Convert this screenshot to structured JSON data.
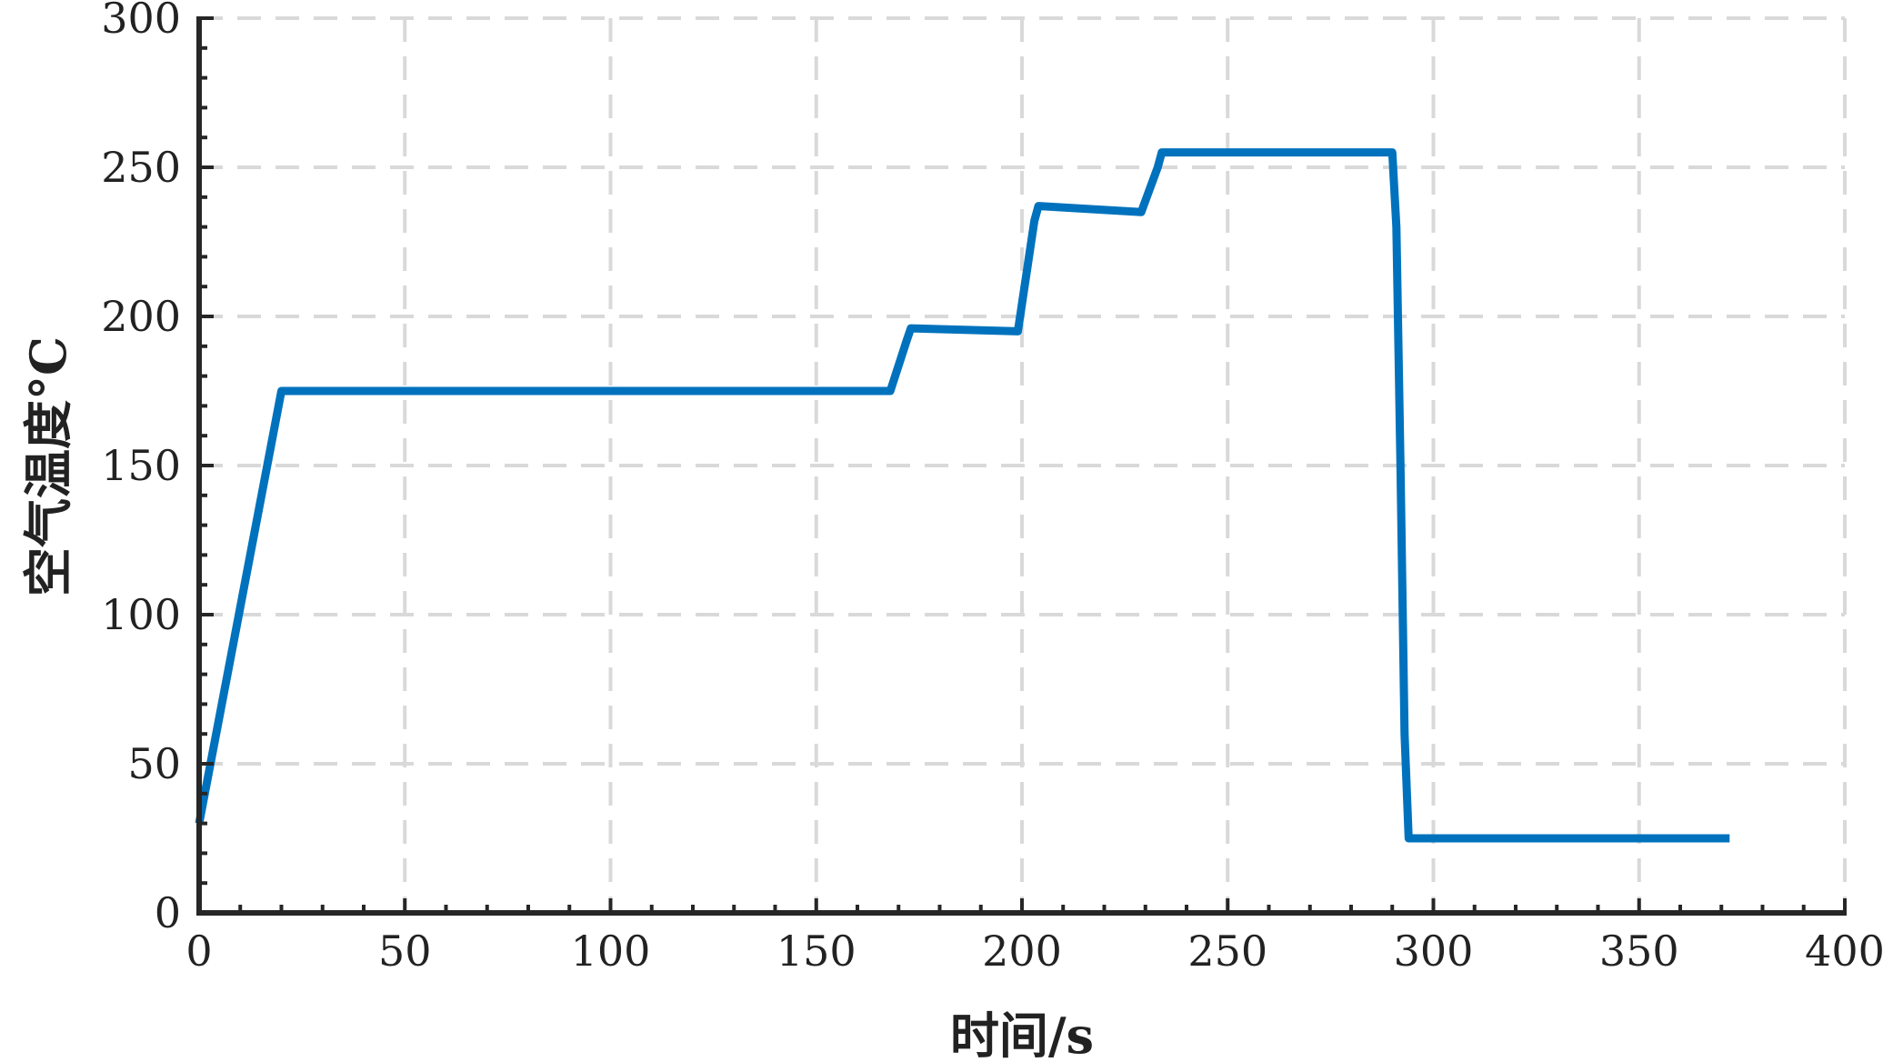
{
  "chart_data": {
    "type": "line",
    "title": "",
    "xlabel": "时间/s",
    "ylabel": "空气温度°C",
    "xlim": [
      0,
      400
    ],
    "ylim": [
      0,
      300
    ],
    "xticks": [
      0,
      50,
      100,
      150,
      200,
      250,
      300,
      350,
      400
    ],
    "yticks": [
      0,
      50,
      100,
      150,
      200,
      250,
      300
    ],
    "grid": true,
    "legend": "none",
    "series": [
      {
        "color": "#0072BD",
        "x": [
          0,
          20,
          168,
          172,
          173,
          199,
          203,
          204,
          229,
          233,
          234,
          290,
          291,
          292,
          293,
          294,
          372
        ],
        "y": [
          30,
          175,
          175,
          192,
          196,
          195,
          232,
          237,
          235,
          250,
          255,
          255,
          230,
          150,
          60,
          25,
          25
        ]
      }
    ]
  },
  "colors": {
    "line": "#0072BD",
    "axis": "#262626",
    "grid": "#d9d9d9"
  }
}
